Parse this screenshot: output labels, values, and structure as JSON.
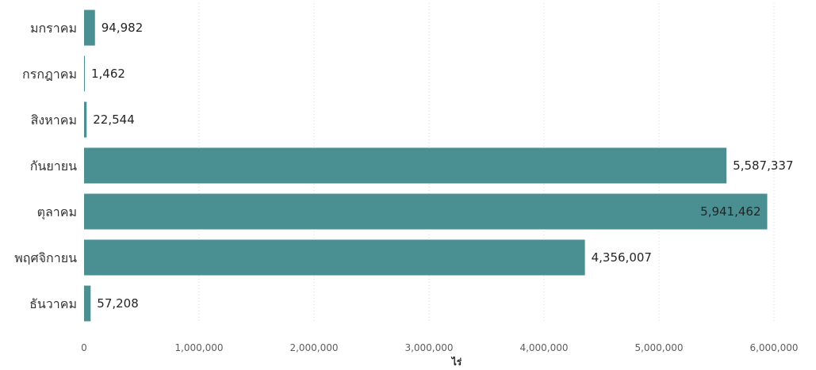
{
  "chart_data": {
    "type": "bar",
    "orientation": "horizontal",
    "categories": [
      "มกราคม",
      "กรกฎาคม",
      "สิงหาคม",
      "กันยายน",
      "ตุลาคม",
      "พฤศจิกายน",
      "ธันวาคม"
    ],
    "values": [
      94982,
      1462,
      22544,
      5587337,
      5941462,
      4356007,
      57208
    ],
    "value_labels": [
      "94,982",
      "1,462",
      "22,544",
      "5,587,337",
      "5,941,462",
      "4,356,007",
      "57,208"
    ],
    "xlabel": "ไร่",
    "ylabel": "",
    "xlim": [
      0,
      6000000
    ],
    "x_ticks": [
      0,
      1000000,
      2000000,
      3000000,
      4000000,
      5000000,
      6000000
    ],
    "x_tick_labels": [
      "0",
      "1,000,000",
      "2,000,000",
      "3,000,000",
      "4,000,000",
      "5,000,000",
      "6,000,000"
    ],
    "grid": true,
    "legend": false,
    "bar_color": "#4a9093"
  }
}
